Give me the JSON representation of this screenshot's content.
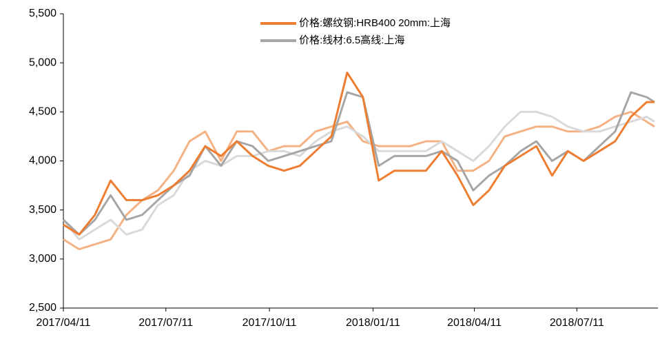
{
  "chart_data": {
    "type": "line",
    "x": [
      "2017/04/11",
      "2017/04/25",
      "2017/05/09",
      "2017/05/23",
      "2017/06/06",
      "2017/06/20",
      "2017/07/04",
      "2017/07/18",
      "2017/08/01",
      "2017/08/15",
      "2017/08/29",
      "2017/09/12",
      "2017/09/26",
      "2017/10/10",
      "2017/10/24",
      "2017/11/07",
      "2017/11/21",
      "2017/12/05",
      "2017/12/19",
      "2018/01/02",
      "2018/01/16",
      "2018/01/30",
      "2018/02/13",
      "2018/02/27",
      "2018/03/13",
      "2018/03/27",
      "2018/04/10",
      "2018/04/24",
      "2018/05/08",
      "2018/05/22",
      "2018/06/05",
      "2018/06/19",
      "2018/07/03",
      "2018/07/17",
      "2018/07/31",
      "2018/08/14",
      "2018/08/28",
      "2018/09/11",
      "2018/09/18"
    ],
    "series": [
      {
        "color": "#f4b183",
        "values": [
          3200,
          3100,
          3150,
          3200,
          3450,
          3600,
          3700,
          3900,
          4200,
          4300,
          4000,
          4300,
          4300,
          4100,
          4150,
          4150,
          4300,
          4350,
          4400,
          4200,
          4150,
          4150,
          4150,
          4200,
          4200,
          3900,
          3900,
          4000,
          4250,
          4300,
          4350,
          4350,
          4300,
          4300,
          4350,
          4450,
          4500,
          4400,
          4350
        ]
      },
      {
        "color": "#d9d9d9",
        "values": [
          3400,
          3200,
          3300,
          3400,
          3250,
          3300,
          3550,
          3650,
          3900,
          4000,
          3950,
          4050,
          4050,
          4100,
          4100,
          4050,
          4200,
          4300,
          4350,
          4250,
          4100,
          4100,
          4100,
          4100,
          4200,
          4100,
          4000,
          4150,
          4350,
          4500,
          4500,
          4450,
          4350,
          4300,
          4300,
          4350,
          4400,
          4450,
          4400
        ]
      },
      {
        "name": "价格:线材:6.5高线:上海",
        "color": "#a6a6a6",
        "values": [
          3400,
          3250,
          3400,
          3650,
          3400,
          3450,
          3600,
          3750,
          3850,
          4150,
          3950,
          4200,
          4150,
          4000,
          4050,
          4100,
          4150,
          4200,
          4700,
          4650,
          3950,
          4050,
          4050,
          4050,
          4100,
          4000,
          3700,
          3850,
          3950,
          4100,
          4200,
          4000,
          4100,
          4000,
          4150,
          4300,
          4700,
          4650,
          4600
        ]
      },
      {
        "name": "价格:螺纹钢:HRB400 20mm:上海",
        "color": "#ed7d31",
        "values": [
          3350,
          3250,
          3450,
          3800,
          3600,
          3600,
          3650,
          3750,
          3900,
          4150,
          4050,
          4200,
          4050,
          3950,
          3900,
          3950,
          4100,
          4250,
          4900,
          4650,
          3800,
          3900,
          3900,
          3900,
          4100,
          3850,
          3550,
          3700,
          3950,
          4050,
          4150,
          3850,
          4100,
          4000,
          4100,
          4200,
          4450,
          4600,
          4600
        ]
      }
    ],
    "xlim": [
      "2017/04/11",
      "2018/09/21"
    ],
    "xticks": [
      "2017/04/11",
      "2017/07/11",
      "2017/10/11",
      "2018/01/11",
      "2018/04/11",
      "2018/07/11"
    ],
    "ylim": [
      2500,
      5500
    ],
    "yticks": [
      {
        "value": 2500,
        "label": "2,500"
      },
      {
        "value": 3000,
        "label": "3,000"
      },
      {
        "value": 3500,
        "label": "3,500"
      },
      {
        "value": 4000,
        "label": "4,000"
      },
      {
        "value": 4500,
        "label": "4,500"
      },
      {
        "value": 5000,
        "label": "5,000"
      },
      {
        "value": 5500,
        "label": "5,500"
      }
    ]
  }
}
